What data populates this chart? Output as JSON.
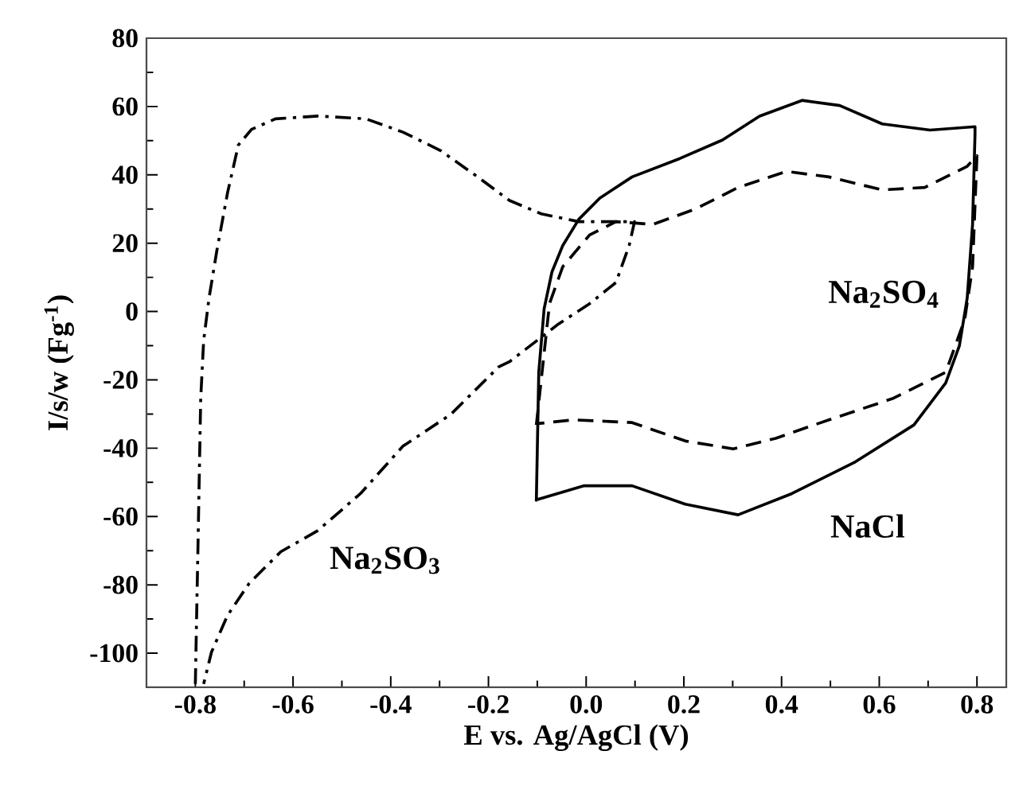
{
  "chart_data": {
    "type": "line",
    "xlabel": "E vs. Ag/AgCl  (V)",
    "ylabel": "I/s/w  (Fg$^{-1}$)",
    "xlim": [
      -0.9,
      0.86
    ],
    "ylim": [
      -110,
      80
    ],
    "xticks": [
      {
        "value": -0.8,
        "label": "-0.8"
      },
      {
        "value": -0.6,
        "label": "-0.6"
      },
      {
        "value": -0.4,
        "label": "-0.4"
      },
      {
        "value": -0.2,
        "label": "-0.2"
      },
      {
        "value": 0,
        "label": "0.0"
      },
      {
        "value": 0.2,
        "label": "0.2"
      },
      {
        "value": 0.4,
        "label": "0.4"
      },
      {
        "value": 0.6,
        "label": "0.6"
      },
      {
        "value": 0.8,
        "label": "0.8"
      }
    ],
    "yticks": [
      -100,
      -80,
      -60,
      -40,
      -20,
      0,
      20,
      40,
      60,
      80
    ],
    "grid": false,
    "legend": false,
    "marker": "none",
    "series": [
      {
        "name": "Na$_{2}$SO$_{3}$",
        "color": "#000000",
        "line_style": "dashdot",
        "x": [
          -0.8,
          -0.794,
          -0.789,
          -0.783,
          -0.772,
          -0.756,
          -0.734,
          -0.712,
          -0.685,
          -0.636,
          -0.549,
          -0.451,
          -0.375,
          -0.298,
          -0.222,
          -0.157,
          -0.092,
          -0.015,
          0.05,
          0.099,
          0.088,
          0.061,
          0.007,
          -0.059,
          -0.157,
          -0.179,
          -0.277,
          -0.375,
          -0.462,
          -0.549,
          -0.625,
          -0.69,
          -0.734,
          -0.767,
          -0.783
        ],
        "values": [
          -109,
          -64,
          -25.5,
          -8.5,
          3.9,
          17.8,
          34.8,
          48.7,
          53.3,
          56.4,
          57.2,
          56.4,
          52.5,
          47.1,
          39.4,
          32.5,
          28.6,
          26.3,
          26.3,
          26.3,
          19.3,
          8.5,
          2.3,
          -3.9,
          -14.7,
          -16.2,
          -30.1,
          -39.4,
          -53.3,
          -64.1,
          -70.3,
          -79.6,
          -88.9,
          -99.7,
          -109
        ]
      },
      {
        "name": "Na$_{2}$SO$_{4}$",
        "color": "#000000",
        "line_style": "dashed",
        "x": [
          -0.102,
          -0.075,
          -0.048,
          0.007,
          0.061,
          0.137,
          0.225,
          0.311,
          0.41,
          0.497,
          0.606,
          0.693,
          0.78,
          0.8,
          0.791,
          0.775,
          0.736,
          0.627,
          0.497,
          0.388,
          0.301,
          0.203,
          0.094,
          -0.026,
          -0.099
        ],
        "values": [
          -33.2,
          2.3,
          13.1,
          22.4,
          26.3,
          25.5,
          30.1,
          36.3,
          41,
          39.4,
          35.6,
          36.3,
          42.5,
          45.6,
          13.1,
          -2.3,
          -17.8,
          -25.5,
          -31.7,
          -37.1,
          -40.2,
          -37.9,
          -32.5,
          -31.7,
          -32.8
        ]
      },
      {
        "name": "NaCl",
        "color": "#000000",
        "line_style": "solid",
        "x": [
          -0.102,
          -0.097,
          -0.086,
          -0.07,
          -0.048,
          -0.015,
          0.028,
          0.094,
          0.192,
          0.279,
          0.355,
          0.442,
          0.519,
          0.606,
          0.704,
          0.796,
          0.796,
          0.791,
          0.78,
          0.764,
          0.736,
          0.671,
          0.551,
          0.421,
          0.311,
          0.203,
          0.094,
          -0.004,
          -0.099
        ],
        "values": [
          -55.6,
          -17.8,
          0.8,
          11.6,
          19.3,
          27,
          33.2,
          39.4,
          44.8,
          50.2,
          57.2,
          61.8,
          60.3,
          54.9,
          53.1,
          54.1,
          52,
          25.5,
          3.9,
          -10,
          -20.9,
          -33.2,
          -44,
          -53.3,
          -59.5,
          -56.4,
          -51,
          -51,
          -55
        ]
      }
    ]
  }
}
